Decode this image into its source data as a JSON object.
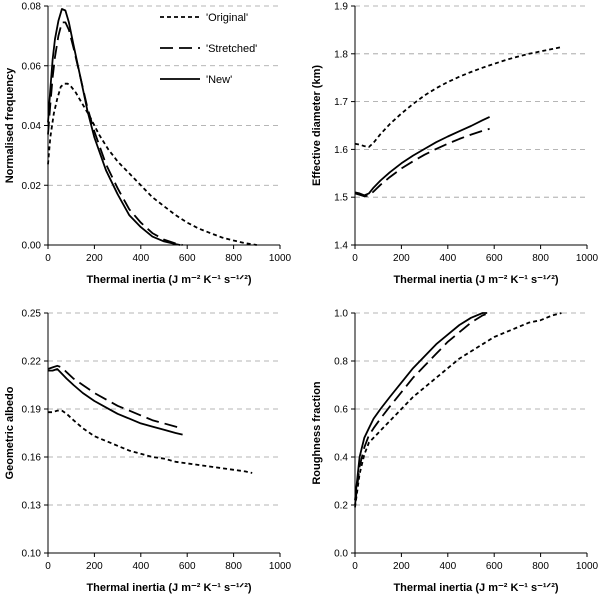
{
  "figure": {
    "layout": "2x2 grid of line charts"
  },
  "legend": {
    "placement": "top-right of panel 1",
    "entries": [
      {
        "label": "'Original'",
        "style": "short-dash"
      },
      {
        "label": "'Stretched'",
        "style": "long-dash"
      },
      {
        "label": "'New'",
        "style": "solid"
      }
    ]
  },
  "chart_data": [
    {
      "type": "line",
      "title": "",
      "xlabel": "Thermal inertia (J m⁻² K⁻¹ s⁻¹ᐟ²)",
      "ylabel": "Normalised frequency",
      "xlim": [
        0,
        1000
      ],
      "ylim": [
        0,
        0.08
      ],
      "xticks": [
        0,
        200,
        400,
        600,
        800,
        1000
      ],
      "xtick_labels": [
        "0",
        "200",
        "400",
        "600",
        "800",
        "1000"
      ],
      "yticks": [
        0,
        0.02,
        0.04,
        0.06,
        0.08
      ],
      "ytick_labels": [
        "0.00",
        "0.02",
        "0.04",
        "0.06",
        "0.08"
      ],
      "grid": "horizontal dashed",
      "series": [
        {
          "name": "'Original'",
          "style": "short-dash",
          "x": [
            0,
            10,
            25,
            40,
            55,
            70,
            85,
            100,
            120,
            150,
            180,
            220,
            260,
            300,
            350,
            400,
            450,
            500,
            550,
            600,
            650,
            700,
            750,
            800,
            850,
            900
          ],
          "y": [
            0.027,
            0.036,
            0.044,
            0.049,
            0.053,
            0.054,
            0.054,
            0.053,
            0.051,
            0.047,
            0.043,
            0.037,
            0.032,
            0.028,
            0.024,
            0.02,
            0.016,
            0.013,
            0.01,
            0.0075,
            0.0055,
            0.004,
            0.0025,
            0.0015,
            0.0006,
            0.0
          ]
        },
        {
          "name": "'Stretched'",
          "style": "long-dash",
          "x": [
            0,
            10,
            20,
            30,
            45,
            60,
            75,
            90,
            110,
            140,
            170,
            200,
            250,
            300,
            350,
            400,
            450,
            500,
            550,
            580
          ],
          "y": [
            0.037,
            0.047,
            0.056,
            0.063,
            0.07,
            0.0745,
            0.0745,
            0.072,
            0.066,
            0.056,
            0.046,
            0.038,
            0.027,
            0.019,
            0.012,
            0.0075,
            0.004,
            0.0018,
            0.0005,
            0.0
          ]
        },
        {
          "name": "'New'",
          "style": "solid",
          "x": [
            0,
            10,
            20,
            30,
            45,
            60,
            75,
            90,
            110,
            140,
            170,
            200,
            250,
            300,
            350,
            400,
            450,
            500,
            550,
            570
          ],
          "y": [
            0.041,
            0.052,
            0.062,
            0.069,
            0.075,
            0.079,
            0.0785,
            0.0745,
            0.067,
            0.056,
            0.045,
            0.036,
            0.025,
            0.017,
            0.01,
            0.006,
            0.0028,
            0.0012,
            0.0003,
            0.0
          ]
        }
      ]
    },
    {
      "type": "line",
      "title": "",
      "xlabel": "Thermal inertia (J m⁻² K⁻¹ s⁻¹ᐟ²)",
      "ylabel": "Effective diameter (km)",
      "xlim": [
        0,
        1000
      ],
      "ylim": [
        1.4,
        1.9
      ],
      "xticks": [
        0,
        200,
        400,
        600,
        800,
        1000
      ],
      "xtick_labels": [
        "0",
        "200",
        "400",
        "600",
        "800",
        "1000"
      ],
      "yticks": [
        1.4,
        1.5,
        1.6,
        1.7,
        1.8,
        1.9
      ],
      "ytick_labels": [
        "1.4",
        "1.5",
        "1.6",
        "1.7",
        "1.8",
        "1.9"
      ],
      "grid": "horizontal dashed",
      "series": [
        {
          "name": "'Original'",
          "style": "short-dash",
          "x": [
            0,
            20,
            40,
            60,
            80,
            110,
            150,
            200,
            250,
            300,
            350,
            400,
            450,
            500,
            550,
            600,
            650,
            700,
            750,
            800,
            850,
            890
          ],
          "y": [
            1.612,
            1.61,
            1.607,
            1.605,
            1.614,
            1.632,
            1.653,
            1.675,
            1.695,
            1.713,
            1.728,
            1.741,
            1.752,
            1.762,
            1.771,
            1.779,
            1.787,
            1.794,
            1.8,
            1.805,
            1.81,
            1.814
          ]
        },
        {
          "name": "'Stretched'",
          "style": "long-dash",
          "x": [
            0,
            20,
            40,
            60,
            80,
            110,
            150,
            200,
            250,
            300,
            350,
            400,
            450,
            500,
            550,
            580
          ],
          "y": [
            1.508,
            1.505,
            1.502,
            1.503,
            1.512,
            1.526,
            1.542,
            1.56,
            1.575,
            1.589,
            1.601,
            1.612,
            1.622,
            1.631,
            1.639,
            1.643
          ]
        },
        {
          "name": "'New'",
          "style": "solid",
          "x": [
            0,
            20,
            40,
            60,
            80,
            110,
            150,
            200,
            250,
            300,
            350,
            400,
            450,
            500,
            550,
            580
          ],
          "y": [
            1.51,
            1.508,
            1.504,
            1.508,
            1.52,
            1.535,
            1.552,
            1.571,
            1.587,
            1.601,
            1.615,
            1.627,
            1.638,
            1.649,
            1.661,
            1.668
          ]
        }
      ]
    },
    {
      "type": "line",
      "title": "",
      "xlabel": "Thermal inertia (J m⁻² K⁻¹ s⁻¹ᐟ²)",
      "ylabel": "Geometric albedo",
      "xlim": [
        0,
        1000
      ],
      "ylim": [
        0.1,
        0.25
      ],
      "xticks": [
        0,
        200,
        400,
        600,
        800,
        1000
      ],
      "xtick_labels": [
        "0",
        "200",
        "400",
        "600",
        "800",
        "1000"
      ],
      "yticks": [
        0.1,
        0.13,
        0.16,
        0.19,
        0.22,
        0.25
      ],
      "ytick_labels": [
        "0.10",
        "0.13",
        "0.16",
        "0.19",
        "0.22",
        "0.25"
      ],
      "grid": "horizontal dashed",
      "series": [
        {
          "name": "'Original'",
          "style": "short-dash",
          "x": [
            0,
            20,
            40,
            60,
            80,
            110,
            150,
            200,
            250,
            300,
            350,
            400,
            450,
            500,
            550,
            600,
            650,
            700,
            750,
            800,
            850,
            880
          ],
          "y": [
            0.188,
            0.188,
            0.189,
            0.189,
            0.187,
            0.183,
            0.178,
            0.173,
            0.17,
            0.167,
            0.164,
            0.162,
            0.16,
            0.159,
            0.157,
            0.156,
            0.155,
            0.154,
            0.153,
            0.152,
            0.151,
            0.15
          ]
        },
        {
          "name": "'Stretched'",
          "style": "long-dash",
          "x": [
            0,
            20,
            40,
            60,
            80,
            110,
            150,
            200,
            250,
            300,
            350,
            400,
            450,
            500,
            550,
            580
          ],
          "y": [
            0.215,
            0.216,
            0.217,
            0.216,
            0.213,
            0.209,
            0.205,
            0.2,
            0.196,
            0.192,
            0.189,
            0.186,
            0.183,
            0.181,
            0.179,
            0.178
          ]
        },
        {
          "name": "'New'",
          "style": "solid",
          "x": [
            0,
            20,
            40,
            60,
            80,
            110,
            150,
            200,
            250,
            300,
            350,
            400,
            450,
            500,
            550,
            580
          ],
          "y": [
            0.214,
            0.214,
            0.215,
            0.212,
            0.209,
            0.205,
            0.2,
            0.195,
            0.191,
            0.187,
            0.184,
            0.181,
            0.179,
            0.177,
            0.175,
            0.174
          ]
        }
      ]
    },
    {
      "type": "line",
      "title": "",
      "xlabel": "Thermal inertia (J m⁻² K⁻¹ s⁻¹ᐟ²)",
      "ylabel": "Roughness fraction",
      "xlim": [
        0,
        1000
      ],
      "ylim": [
        0,
        1.0
      ],
      "xticks": [
        0,
        200,
        400,
        600,
        800,
        1000
      ],
      "xtick_labels": [
        "0",
        "200",
        "400",
        "600",
        "800",
        "1000"
      ],
      "yticks": [
        0,
        0.2,
        0.4,
        0.6,
        0.8,
        1.0
      ],
      "ytick_labels": [
        "0.0",
        "0.2",
        "0.4",
        "0.6",
        "0.8",
        "1.0"
      ],
      "grid": "horizontal dashed",
      "series": [
        {
          "name": "'Original'",
          "style": "short-dash",
          "x": [
            0,
            10,
            20,
            40,
            60,
            80,
            110,
            150,
            200,
            250,
            300,
            350,
            400,
            450,
            500,
            550,
            600,
            650,
            700,
            750,
            800,
            850,
            890
          ],
          "y": [
            0.19,
            0.26,
            0.33,
            0.41,
            0.46,
            0.48,
            0.51,
            0.55,
            0.6,
            0.65,
            0.69,
            0.73,
            0.77,
            0.81,
            0.84,
            0.87,
            0.9,
            0.92,
            0.94,
            0.96,
            0.97,
            0.99,
            1.0
          ]
        },
        {
          "name": "'Stretched'",
          "style": "long-dash",
          "x": [
            0,
            10,
            20,
            40,
            60,
            80,
            110,
            150,
            200,
            250,
            300,
            350,
            400,
            450,
            500,
            550,
            580
          ],
          "y": [
            0.2,
            0.28,
            0.36,
            0.44,
            0.49,
            0.52,
            0.56,
            0.61,
            0.67,
            0.73,
            0.78,
            0.83,
            0.88,
            0.92,
            0.96,
            0.99,
            1.0
          ]
        },
        {
          "name": "'New'",
          "style": "solid",
          "x": [
            0,
            10,
            20,
            40,
            60,
            80,
            110,
            150,
            200,
            250,
            300,
            350,
            400,
            450,
            500,
            550,
            570
          ],
          "y": [
            0.22,
            0.31,
            0.4,
            0.48,
            0.52,
            0.56,
            0.6,
            0.65,
            0.71,
            0.77,
            0.82,
            0.87,
            0.91,
            0.95,
            0.98,
            1.0,
            1.0
          ]
        }
      ]
    }
  ]
}
